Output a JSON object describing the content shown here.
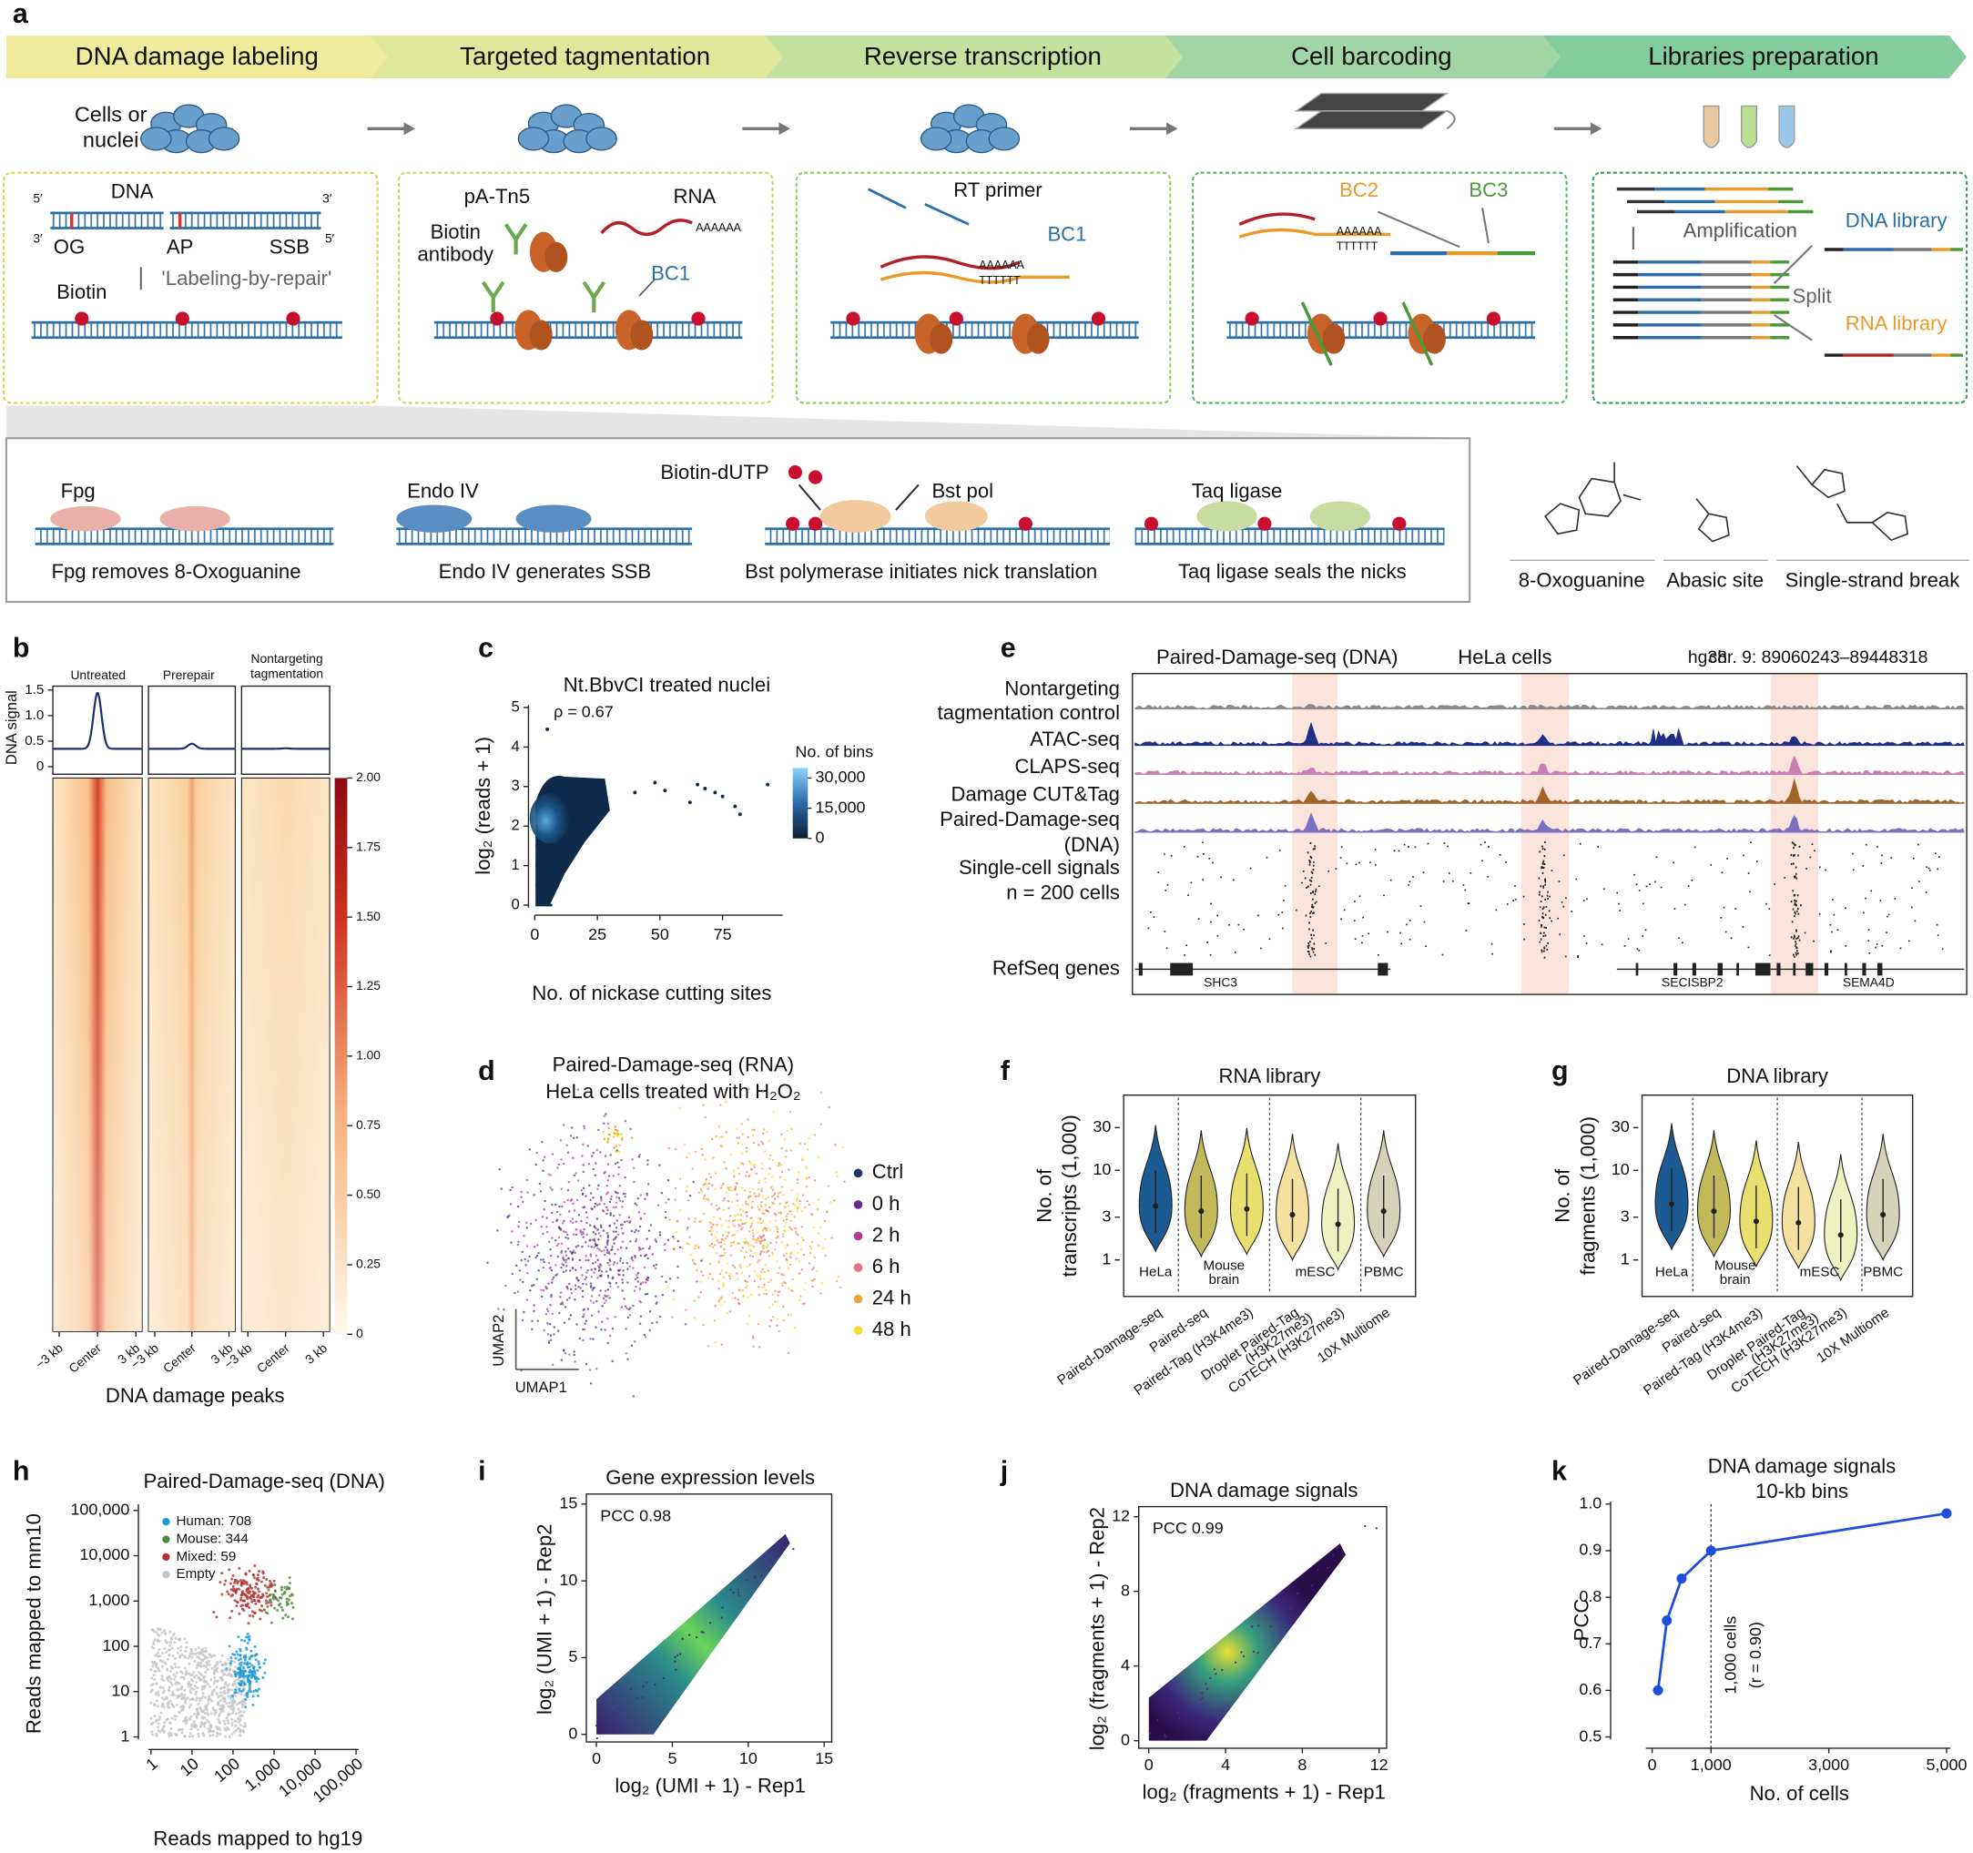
{
  "panel_labels": [
    "a",
    "b",
    "c",
    "d",
    "e",
    "f",
    "g",
    "h",
    "i",
    "j",
    "k"
  ],
  "a": {
    "steps": [
      "DNA damage labeling",
      "Targeted tagmentation",
      "Reverse transcription",
      "Cell barcoding",
      "Libraries preparation"
    ],
    "cells": [
      "Cells or",
      "nuclei"
    ],
    "labeling": {
      "dna": "DNA",
      "ends": [
        "5′",
        "3′",
        "3′",
        "5′"
      ],
      "sites": [
        "OG",
        "AP",
        "SSB"
      ],
      "repair": "'Labeling-by-repair'",
      "biotin": "Biotin"
    },
    "tagmentation": {
      "tn5": "pA-Tn5",
      "rna": "RNA",
      "antibody": [
        "Biotin",
        "antibody"
      ],
      "bc1": "BC1",
      "polya": "AAAAAA"
    },
    "rt": {
      "primer": "RT primer",
      "bc1": "BC1",
      "polya": "AAAAAA",
      "polyt": "TTTTTT"
    },
    "barcoding": {
      "bc2": "BC2",
      "bc3": "BC3",
      "polya": "AAAAAA",
      "polyt": "TTTTTT"
    },
    "libraries": {
      "amplification": "Amplification",
      "dna": "DNA library",
      "split": "Split",
      "rna": "RNA library"
    },
    "repair_steps": [
      {
        "enzyme": "Fpg",
        "caption": "Fpg removes 8-Oxoguanine"
      },
      {
        "enzyme": "Endo IV",
        "caption": "Endo IV generates SSB"
      },
      {
        "enzyme": "Bst pol",
        "extra": "Biotin-dUTP",
        "caption": "Bst polymerase initiates nick translation"
      },
      {
        "enzyme": "Taq ligase",
        "caption": "Taq ligase seals the nicks"
      }
    ],
    "lesions": [
      "8-Oxoguanine",
      "Abasic site",
      "Single-strand break"
    ]
  },
  "b": {
    "columns": [
      "Untreated",
      "Prerepair"
    ],
    "nontargeting": [
      "Nontargeting",
      "tagmentation"
    ],
    "profile": {
      "ylabel": "DNA signal",
      "ylim": [
        0,
        1.7
      ],
      "yticks": [
        0,
        0.5,
        {
          "value": 1,
          "label": "1.0"
        },
        1.5
      ]
    },
    "colorbar": {
      "ylim": [
        0,
        2
      ],
      "yticks": [
        0,
        0.25,
        {
          "value": 0.5,
          "label": "0.50"
        },
        0.75,
        {
          "value": 1,
          "label": "1.00"
        },
        1.25,
        {
          "value": 1.5,
          "label": "1.50"
        },
        1.75,
        {
          "value": 2,
          "label": "2.00"
        }
      ]
    },
    "xticks": [
      "−3 kb",
      "Center",
      "3 kb"
    ],
    "xlabel": "DNA damage peaks"
  },
  "c": {
    "type": "scatter",
    "title": "Nt.BbvCI treated nuclei",
    "annotation": "ρ = 0.67",
    "xlabel": "No.  of nickase cutting sites",
    "ylabel": "log₂ (reads + 1)",
    "xlim": [
      0,
      100
    ],
    "ylim": [
      0,
      5
    ],
    "xticks": [
      0,
      25,
      50,
      75
    ],
    "yticks": [
      0,
      1,
      2,
      3,
      4,
      5
    ],
    "x": [
      5,
      40,
      48,
      52,
      62,
      65,
      68,
      72,
      75,
      80,
      82,
      93
    ],
    "values": [
      4.45,
      2.85,
      3.1,
      2.9,
      2.6,
      3.05,
      2.95,
      2.85,
      2.75,
      2.5,
      2.3,
      3.05
    ],
    "color": "#0d2a4a",
    "colorbar": {
      "title": "No. of bins",
      "lim": [
        0,
        35000
      ],
      "ticks": [
        0,
        {
          "value": 15000,
          "label": "15,000"
        },
        {
          "value": 30000,
          "label": "30,000"
        }
      ]
    }
  },
  "d": {
    "title": "Paired-Damage-seq (RNA)",
    "subtitle": "HeLa cells treated with H₂O₂",
    "series": [
      {
        "name": "Ctrl",
        "color": "#28306b"
      },
      {
        "name": "0 h",
        "color": "#6a2c91"
      },
      {
        "name": "2 h",
        "color": "#b5399b"
      },
      {
        "name": "6 h",
        "color": "#e8727a"
      },
      {
        "name": "24 h",
        "color": "#f3a23f"
      },
      {
        "name": "48 h",
        "color": "#f5dc2c"
      }
    ],
    "xlabel": "UMAP1",
    "ylabel": "UMAP2"
  },
  "e": {
    "title": "Paired-Damage-seq (DNA)",
    "cells": "HeLa cells",
    "genome": "hg38",
    "locus": "chr. 9: 89060243–89448318",
    "tracks": [
      {
        "label": [
          "Nontargeting",
          "tagmentation control"
        ],
        "color": "#8a8a8a"
      },
      {
        "label": [
          "ATAC-seq"
        ],
        "color": "#1f2f8a"
      },
      {
        "label": [
          "CLAPS-seq"
        ],
        "color": "#c97fb3"
      },
      {
        "label": [
          "Damage CUT&Tag"
        ],
        "color": "#a0642a"
      },
      {
        "label": [
          "Paired-Damage-seq",
          "(DNA)"
        ],
        "color": "#7a6fc0"
      }
    ],
    "single_cell": [
      "Single-cell signals",
      "n = 200 cells"
    ],
    "refseq": "RefSeq genes",
    "genes": [
      "SHC3",
      "SECISBP2",
      "SEMA4D"
    ]
  },
  "f": {
    "title": "RNA library",
    "ylabel": [
      "No. of",
      "transcripts (1,000)"
    ],
    "log": true,
    "ylim": [
      0.7,
      50
    ],
    "yticks": [
      1,
      3,
      10,
      30
    ],
    "groups": [
      [
        "HeLa"
      ],
      [
        "Mouse",
        "brain"
      ],
      [
        "mESC"
      ],
      [
        "PBMC"
      ]
    ],
    "methods": [
      [
        "Paired-Damage-seq"
      ],
      [
        "Paired-seq"
      ],
      [
        "Paired-Tag (H3K4me3)"
      ],
      [
        "Droplet Paired-Tag",
        "(H3K27me3)"
      ],
      [
        "CoTECH (H3K27me3)"
      ],
      [
        "10X Multiome"
      ]
    ],
    "medians": [
      4,
      3.5,
      3.7,
      3.2,
      2.5,
      3.5
    ],
    "colors": [
      "#1b5a93",
      "#c2b95a",
      "#e8df6e",
      "#f6e0a0",
      "#eef2c0",
      "#d4d2b8"
    ]
  },
  "g": {
    "title": "DNA library",
    "ylabel": [
      "No. of",
      "fragments (1,000)"
    ],
    "log": true,
    "ylim": [
      0.7,
      50
    ],
    "yticks": [
      1,
      3,
      10,
      30
    ],
    "groups": [
      [
        "HeLa"
      ],
      [
        "Mouse",
        "brain"
      ],
      [
        "mESC"
      ],
      [
        "PBMC"
      ]
    ],
    "methods": [
      [
        "Paired-Damage-seq"
      ],
      [
        "Paired-seq"
      ],
      [
        "Paired-Tag (H3K4me3)"
      ],
      [
        "Droplet Paired-Tag",
        "(H3K27me3)"
      ],
      [
        "CoTECH (H3K27me3)"
      ],
      [
        "10X Multiome"
      ]
    ],
    "medians": [
      4.2,
      3.5,
      2.7,
      2.6,
      1.9,
      3.2
    ],
    "colors": [
      "#1b5a93",
      "#c2b95a",
      "#e8df6e",
      "#f6e0a0",
      "#eef2c0",
      "#d4d2b8"
    ]
  },
  "h": {
    "type": "scatter",
    "title": "Paired-Damage-seq (DNA)",
    "legend": [
      {
        "name": "Human: 708",
        "color": "#1a9ad6"
      },
      {
        "name": "Mouse: 344",
        "color": "#4a8a3a"
      },
      {
        "name": "Mixed: 59",
        "color": "#b03030"
      },
      {
        "name": "Empty",
        "color": "#c4c4c4"
      }
    ],
    "log": true,
    "xlim": [
      1,
      100000
    ],
    "ylim": [
      1,
      100000
    ],
    "xticks": [
      1,
      10,
      100,
      {
        "value": 1000,
        "label": "1,000"
      },
      {
        "value": 10000,
        "label": "10,000"
      },
      {
        "value": 100000,
        "label": "100,000"
      }
    ],
    "yticks": [
      1,
      10,
      100,
      {
        "value": 1000,
        "label": "1,000"
      },
      {
        "value": 10000,
        "label": "10,000"
      },
      {
        "value": 100000,
        "label": "100,000"
      }
    ],
    "xlabel": "Reads mapped to hg19",
    "ylabel": "Reads mapped to mm10"
  },
  "i": {
    "type": "scatter",
    "title": "Gene expression levels",
    "annotation": "PCC 0.98",
    "xlim": [
      0,
      15
    ],
    "ylim": [
      0,
      15
    ],
    "xticks": [
      0,
      5,
      10,
      15
    ],
    "yticks": [
      0,
      5,
      10,
      15
    ],
    "xlabel": "log₂ (UMI + 1) - Rep1",
    "ylabel": "log₂ (UMI + 1) - Rep2"
  },
  "j": {
    "type": "scatter",
    "title": "DNA damage signals",
    "annotation": "PCC 0.99",
    "xlim": [
      0,
      12
    ],
    "ylim": [
      0,
      12
    ],
    "xticks": [
      0,
      4,
      8,
      12
    ],
    "yticks": [
      0,
      4,
      8,
      12
    ],
    "xlabel": "log₂ (fragments + 1) - Rep1",
    "ylabel": "log₂ (fragments + 1) - Rep2"
  },
  "k": {
    "type": "line",
    "title": [
      "DNA damage signals",
      "10-kb bins"
    ],
    "x": [
      100,
      250,
      500,
      1000,
      5000
    ],
    "values": [
      0.6,
      0.75,
      0.84,
      0.9,
      0.98
    ],
    "color": "#1f4fd8",
    "xlim": [
      0,
      5000
    ],
    "ylim": [
      0.5,
      1.0
    ],
    "xticks": [
      0,
      {
        "value": 1000,
        "label": "1,000"
      },
      {
        "value": 3000,
        "label": "3,000"
      },
      {
        "value": 5000,
        "label": "5,000"
      }
    ],
    "yticks": [
      0.5,
      0.6,
      0.7,
      0.8,
      0.9,
      {
        "value": 1,
        "label": "1.0"
      }
    ],
    "xlabel": "No. of cells",
    "ylabel": "PCC",
    "annotation": [
      "1,000 cells",
      "(r = 0.90)"
    ],
    "marker_x": 1000
  }
}
